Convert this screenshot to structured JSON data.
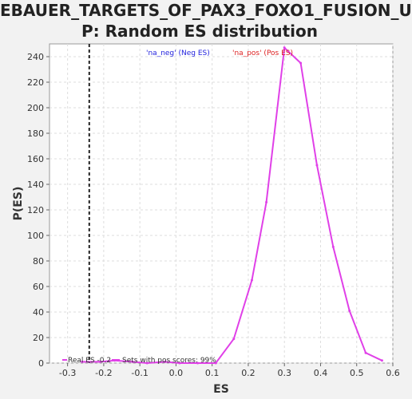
{
  "chart_data": {
    "type": "line",
    "title_line1": "EBAUER_TARGETS_OF_PAX3_FOXO1_FUSION_U",
    "title_line2": "P: Random ES distribution",
    "xlabel": "ES",
    "ylabel": "P(ES)",
    "xlim": [
      -0.35,
      0.6
    ],
    "ylim": [
      0,
      250
    ],
    "x_ticks": [
      "-0.3",
      "-0.2",
      "-0.1",
      "0.0",
      "0.1",
      "0.2",
      "0.3",
      "0.4",
      "0.5",
      "0.6"
    ],
    "y_ticks": [
      "0",
      "20",
      "40",
      "60",
      "80",
      "100",
      "120",
      "140",
      "160",
      "180",
      "200",
      "220",
      "240"
    ],
    "grid": true,
    "series": [
      {
        "name": "",
        "color": "#e040e8",
        "x": [
          -0.26,
          -0.21,
          -0.17,
          -0.12,
          -0.08,
          -0.03,
          0.01,
          0.06,
          0.11,
          0.16,
          0.21,
          0.25,
          0.3,
          0.345,
          0.39,
          0.435,
          0.48,
          0.525,
          0.57
        ],
        "y": [
          1,
          1,
          2,
          1,
          0,
          1,
          0,
          0,
          0,
          19,
          65,
          126,
          247,
          235,
          155,
          91,
          41,
          8,
          2
        ]
      }
    ],
    "real_es": -0.24,
    "legend_top": {
      "neg": "'na_neg' (Neg ES)",
      "neg_color": "#2222dd",
      "pos": "'na_pos' (Pos ES)",
      "pos_color": "#dd2222"
    },
    "legend_bottom": {
      "real_es": "Real ES -0.2",
      "sets_pos": "Sets with pos scores: 99%"
    }
  }
}
